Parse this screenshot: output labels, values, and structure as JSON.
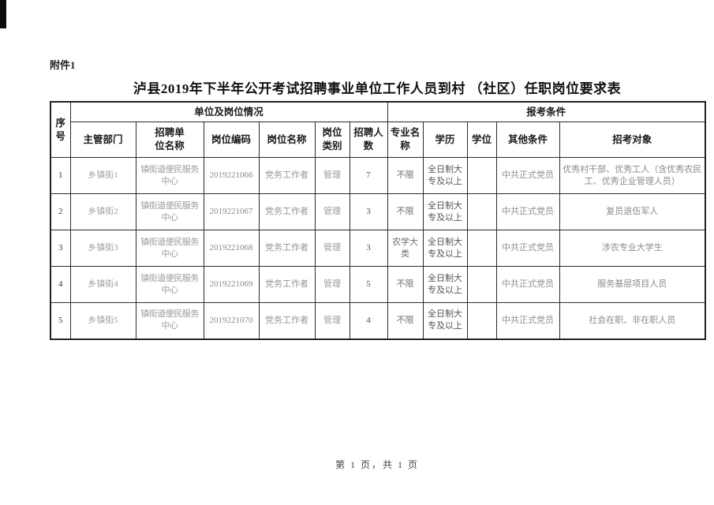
{
  "page": {
    "attachment_label": "附件1",
    "title": "泸县2019年下半年公开考试招聘事业单位工作人员到村 （社区）任职岗位要求表",
    "footer": "第 1 页，共 1 页"
  },
  "table": {
    "header": {
      "serial": "序\n号",
      "unit_group": "单位及岗位情况",
      "conditions_group": "报考条件",
      "columns_unit": [
        "主管部门",
        "招聘单\n位名称",
        "岗位编码",
        "岗位名称",
        "岗位\n类别",
        "招聘人\n数"
      ],
      "columns_cond": [
        "专业名\n称",
        "学历",
        "学位",
        "其他条件",
        "招考对象"
      ]
    },
    "rows": [
      {
        "no": "1",
        "dept": "乡镇街1",
        "unit": "镇街道便民服务中心",
        "code": "2019221066",
        "job": "党务工作者",
        "cat": "管理",
        "count": "7",
        "major": "不限",
        "edu": "全日制大\n专及以上",
        "degree": "",
        "other": "中共正式党员",
        "target": "优秀村干部、优秀工人（含优秀农民工、优秀企业管理人员）"
      },
      {
        "no": "2",
        "dept": "乡镇街2",
        "unit": "镇街道便民服务中心",
        "code": "2019221067",
        "job": "党务工作者",
        "cat": "管理",
        "count": "3",
        "major": "不限",
        "edu": "全日制大\n专及以上",
        "degree": "",
        "other": "中共正式党员",
        "target": "复员退伍军人"
      },
      {
        "no": "3",
        "dept": "乡镇街3",
        "unit": "镇街道便民服务中心",
        "code": "2019221068",
        "job": "党务工作者",
        "cat": "管理",
        "count": "3",
        "major": "农学大类",
        "edu": "全日制大\n专及以上",
        "degree": "",
        "other": "中共正式党员",
        "target": "涉农专业大学生"
      },
      {
        "no": "4",
        "dept": "乡镇街4",
        "unit": "镇街道便民服务中心",
        "code": "2019221069",
        "job": "党务工作者",
        "cat": "管理",
        "count": "5",
        "major": "不限",
        "edu": "全日制大\n专及以上",
        "degree": "",
        "other": "中共正式党员",
        "target": "服务基层项目人员"
      },
      {
        "no": "5",
        "dept": "乡镇街5",
        "unit": "镇街道便民服务中心",
        "code": "2019221070",
        "job": "党务工作者",
        "cat": "管理",
        "count": "4",
        "major": "不限",
        "edu": "全日制大\n专及以上",
        "degree": "",
        "other": "中共正式党员",
        "target": "社会在职、非在职人员"
      }
    ]
  }
}
